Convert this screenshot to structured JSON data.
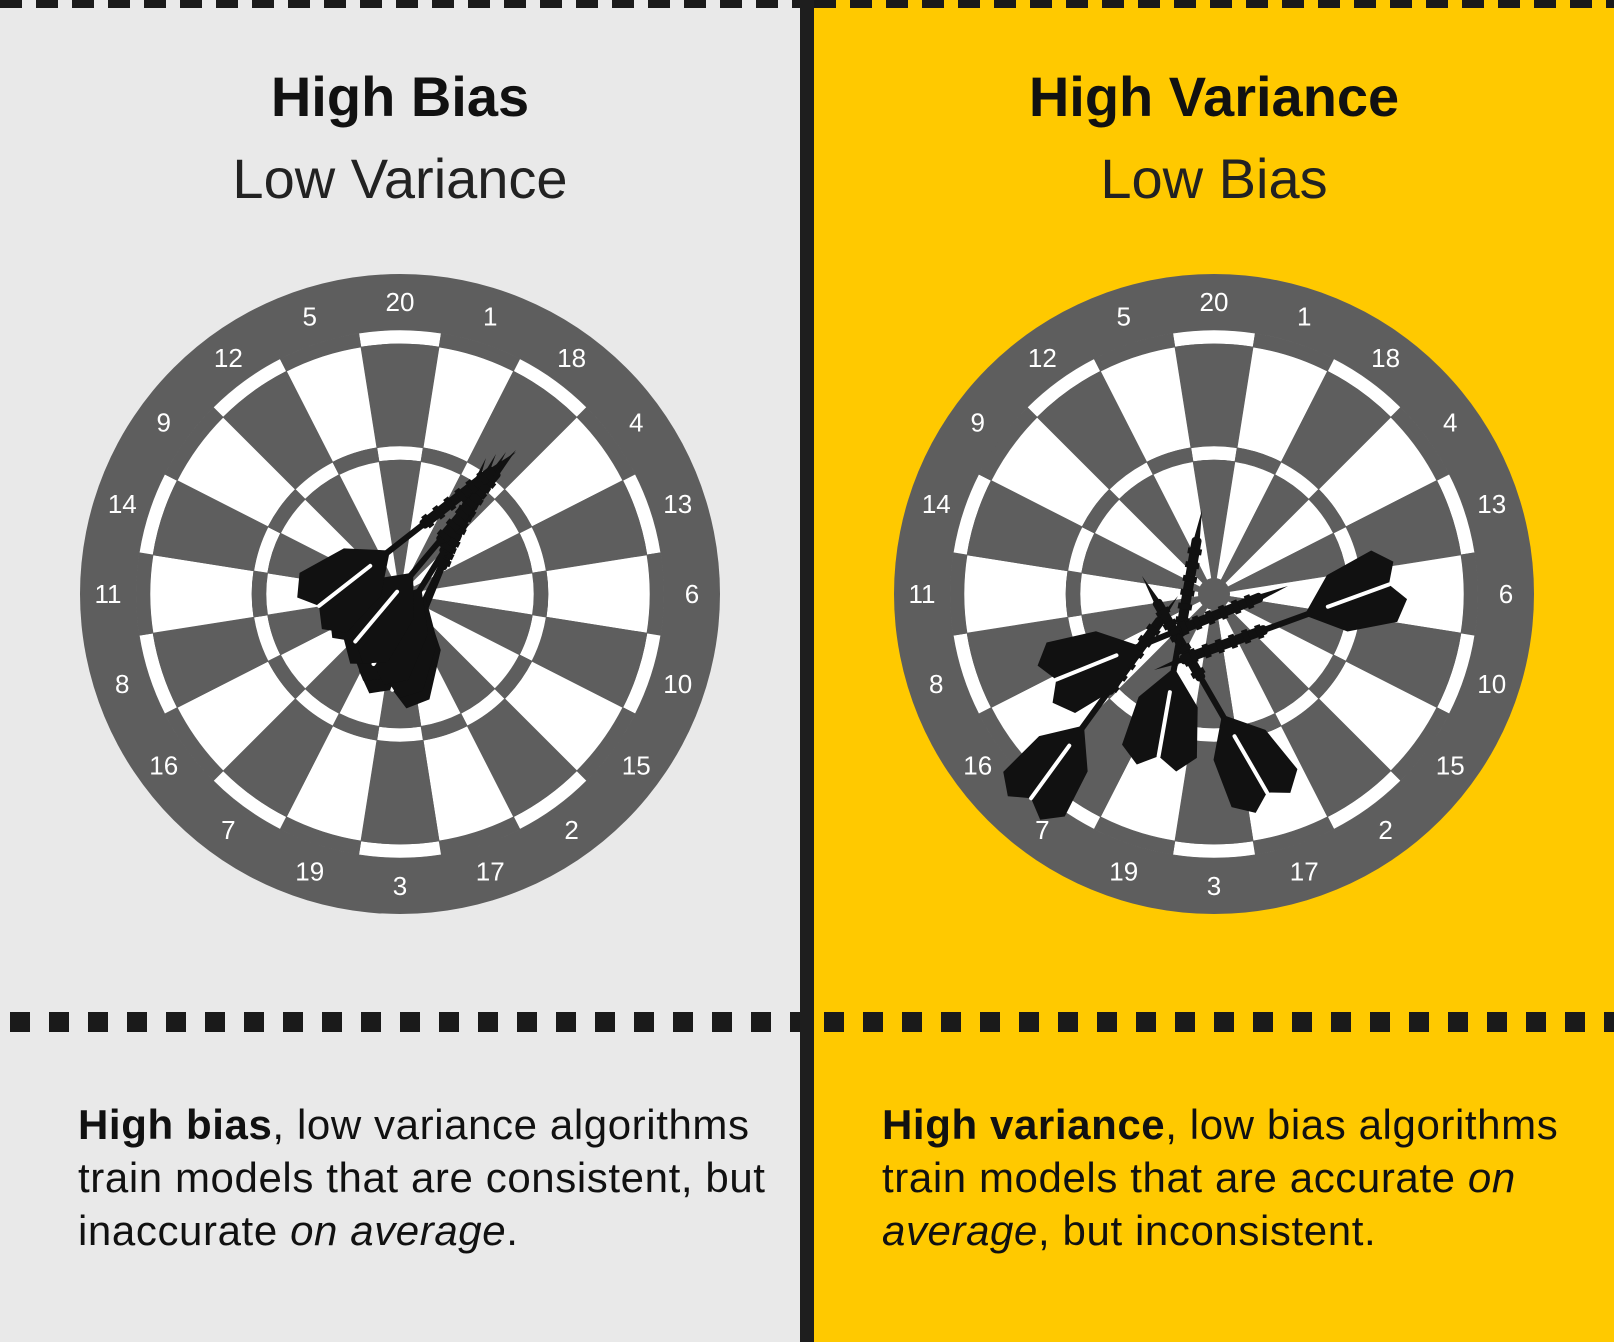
{
  "left_panel": {
    "title": "High Bias",
    "subtitle": "Low Variance",
    "description": {
      "bold": "High bias",
      "rest": ", low variance algorithms train models that are consistent, but inaccurate ",
      "italic": "on average",
      "end": "."
    },
    "background_color": "#e9e9e9"
  },
  "right_panel": {
    "title": "High Variance",
    "subtitle": "Low Bias",
    "description": {
      "bold": "High variance",
      "rest": ", low bias algorithms train models that are accurate ",
      "italic": "on average",
      "end": ", but inconsistent."
    },
    "background_color": "#ffc900"
  },
  "dartboard": {
    "numbers": [
      "20",
      "1",
      "18",
      "4",
      "13",
      "6",
      "10",
      "15",
      "2",
      "17",
      "3",
      "19",
      "7",
      "16",
      "8",
      "11",
      "14",
      "9",
      "12",
      "5"
    ],
    "colors": {
      "outer": "#5e5e5e",
      "dark": "#5e5e5e",
      "light": "#ffffff"
    }
  },
  "darts_icon": "dart-icon"
}
